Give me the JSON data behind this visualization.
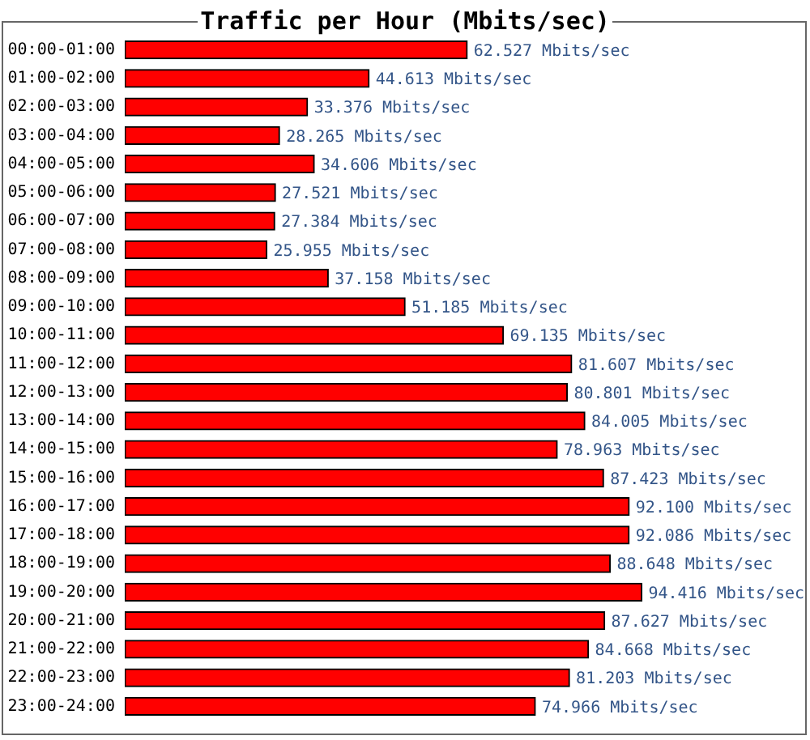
{
  "chart_data": {
    "type": "bar",
    "title": "Traffic per Hour (Mbits/sec)",
    "orientation": "horizontal",
    "color": "#ff0000",
    "categories": [
      "00:00-01:00",
      "01:00-02:00",
      "02:00-03:00",
      "03:00-04:00",
      "04:00-05:00",
      "05:00-06:00",
      "06:00-07:00",
      "07:00-08:00",
      "08:00-09:00",
      "09:00-10:00",
      "10:00-11:00",
      "11:00-12:00",
      "12:00-13:00",
      "13:00-14:00",
      "14:00-15:00",
      "15:00-16:00",
      "16:00-17:00",
      "17:00-18:00",
      "18:00-19:00",
      "19:00-20:00",
      "20:00-21:00",
      "21:00-22:00",
      "22:00-23:00",
      "23:00-24:00"
    ],
    "values": [
      62.527,
      44.613,
      33.376,
      28.265,
      34.606,
      27.521,
      27.384,
      25.955,
      37.158,
      51.185,
      69.135,
      81.607,
      80.801,
      84.005,
      78.963,
      87.423,
      92.1,
      92.086,
      88.648,
      94.416,
      87.627,
      84.668,
      81.203,
      74.966
    ],
    "value_labels": [
      "62.527 Mbits/sec",
      "44.613 Mbits/sec",
      "33.376 Mbits/sec",
      "28.265 Mbits/sec",
      "34.606 Mbits/sec",
      "27.521 Mbits/sec",
      "27.384 Mbits/sec",
      "25.955 Mbits/sec",
      "37.158 Mbits/sec",
      "51.185 Mbits/sec",
      "69.135 Mbits/sec",
      "81.607 Mbits/sec",
      "80.801 Mbits/sec",
      "84.005 Mbits/sec",
      "78.963 Mbits/sec",
      "87.423 Mbits/sec",
      "92.100 Mbits/sec",
      "92.086 Mbits/sec",
      "88.648 Mbits/sec",
      "94.416 Mbits/sec",
      "87.627 Mbits/sec",
      "84.668 Mbits/sec",
      "81.203 Mbits/sec",
      "74.966 Mbits/sec"
    ]
  }
}
